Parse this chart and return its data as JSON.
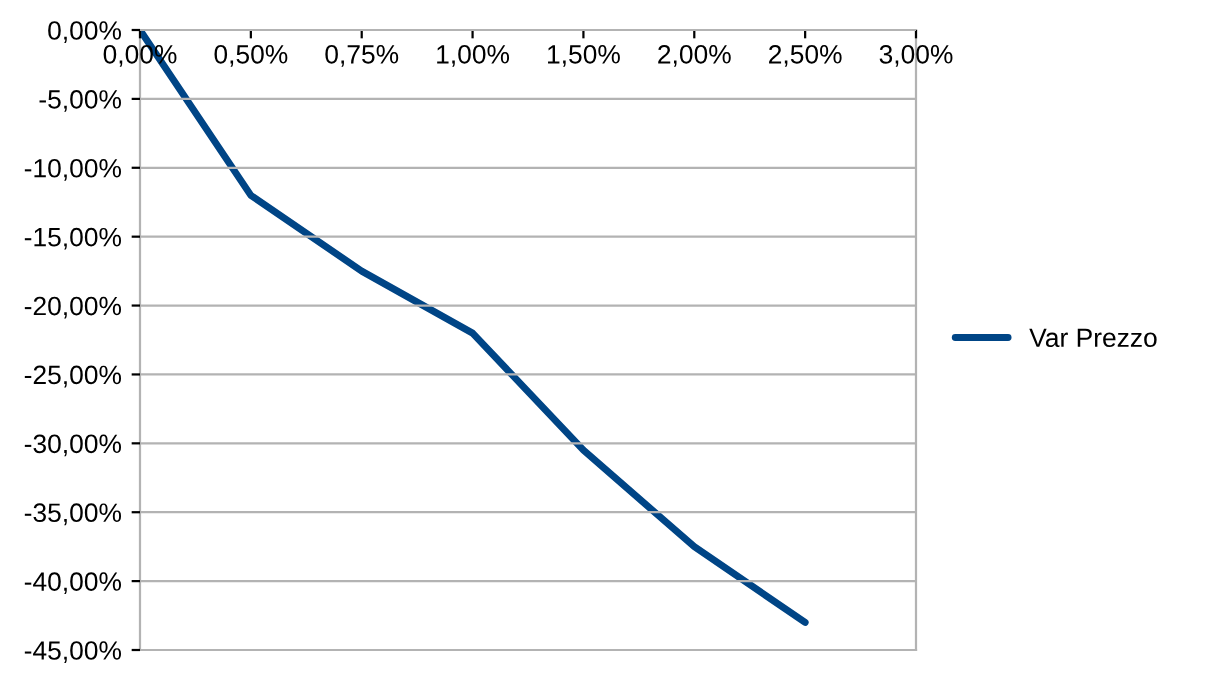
{
  "chart_data": {
    "type": "line",
    "categories": [
      "0,00%",
      "0,50%",
      "0,75%",
      "1,00%",
      "1,50%",
      "2,00%",
      "2,50%",
      "3,00%"
    ],
    "series": [
      {
        "name": "Var Prezzo",
        "color": "#004586",
        "values": [
          0,
          -12,
          -17.5,
          -22,
          -30.5,
          -37.5,
          -43,
          null
        ]
      }
    ],
    "ylim": [
      -45,
      0
    ],
    "yticks": [
      {
        "value": 0,
        "label": "0,00%"
      },
      {
        "value": -5,
        "label": "-5,00%"
      },
      {
        "value": -10,
        "label": "-10,00%"
      },
      {
        "value": -15,
        "label": "-15,00%"
      },
      {
        "value": -20,
        "label": "-20,00%"
      },
      {
        "value": -25,
        "label": "-25,00%"
      },
      {
        "value": -30,
        "label": "-30,00%"
      },
      {
        "value": -35,
        "label": "-35,00%"
      },
      {
        "value": -40,
        "label": "-40,00%"
      },
      {
        "value": -45,
        "label": "-45,00%"
      }
    ],
    "grid": "y",
    "legend": "right",
    "marker": "none",
    "line_style": "solid"
  }
}
